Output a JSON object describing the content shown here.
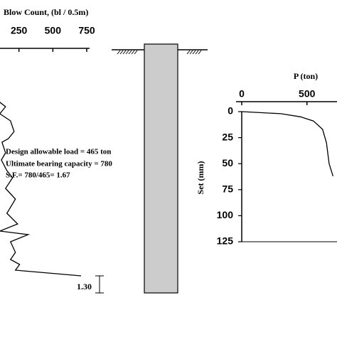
{
  "chart_data": [
    {
      "type": "line",
      "title": "Blow Count, (bl / 0.5m)",
      "xlim": [
        0,
        750
      ],
      "xticks": [
        250,
        500,
        750
      ],
      "ylim": [
        0,
        280
      ],
      "series": [
        {
          "color": "#000000",
          "x": [
            83,
            151,
            109,
            188,
            214,
            172,
            125,
            151,
            120,
            161,
            203,
            151,
            224,
            161,
            240,
            109,
            318,
            188,
            224,
            188,
            255,
            224,
            344,
            708
          ],
          "values": [
            10,
            20,
            30,
            40,
            55,
            65,
            70,
            85,
            95,
            110,
            120,
            135,
            150,
            170,
            185,
            195,
            200,
            210,
            225,
            235,
            242,
            250,
            252,
            258
          ]
        }
      ],
      "annotations": [
        "Design allowable load = 465 ton",
        "Ultimate bearing capacity = 780",
        "S.F.= 780/465= 1.67",
        "1.30"
      ]
    },
    {
      "type": "line",
      "title": "P (ton)",
      "y_label": "Set (mm)",
      "xlim": [
        0,
        725
      ],
      "xticks": [
        0,
        500
      ],
      "ylim": [
        0,
        125
      ],
      "yticks": [
        0,
        25,
        50,
        75,
        100,
        125
      ],
      "series": [
        {
          "color": "#000000",
          "x": [
            0,
            300,
            450,
            550,
            620,
            650,
            670,
            700
          ],
          "values": [
            0,
            2,
            5,
            9,
            17,
            30,
            50,
            62
          ]
        }
      ]
    }
  ]
}
